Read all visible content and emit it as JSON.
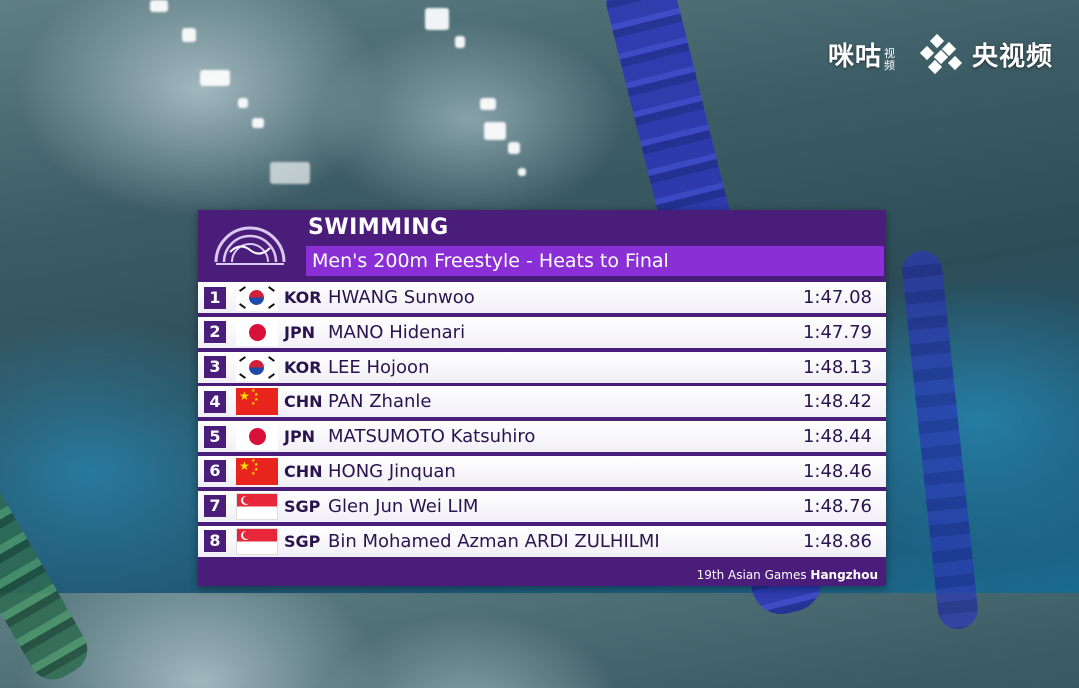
{
  "broadcaster": {
    "logo_left": "咪咕",
    "logo_left_small": "视频",
    "logo_right": "央视频"
  },
  "board": {
    "sport": "SWIMMING",
    "event": "Men's 200m Freestyle - Heats to Final",
    "footer_prefix": "19th Asian Games ",
    "footer_city": "Hangzhou",
    "colors": {
      "panel": "#4b1d7a",
      "event_bar": "#8a2fd6"
    },
    "results": [
      {
        "rank": "1",
        "flag": "kor-flag-icon",
        "code": "KOR",
        "name": "HWANG Sunwoo",
        "time": "1:47.08"
      },
      {
        "rank": "2",
        "flag": "jpn-flag-icon",
        "code": "JPN",
        "name": "MANO Hidenari",
        "time": "1:47.79"
      },
      {
        "rank": "3",
        "flag": "kor-flag-icon",
        "code": "KOR",
        "name": "LEE Hojoon",
        "time": "1:48.13"
      },
      {
        "rank": "4",
        "flag": "chn-flag-icon",
        "code": "CHN",
        "name": "PAN Zhanle",
        "time": "1:48.42"
      },
      {
        "rank": "5",
        "flag": "jpn-flag-icon",
        "code": "JPN",
        "name": "MATSUMOTO Katsuhiro",
        "time": "1:48.44"
      },
      {
        "rank": "6",
        "flag": "chn-flag-icon",
        "code": "CHN",
        "name": "HONG Jinquan",
        "time": "1:48.46"
      },
      {
        "rank": "7",
        "flag": "sgp-flag-icon",
        "code": "SGP",
        "name": "Glen Jun Wei LIM",
        "time": "1:48.76"
      },
      {
        "rank": "8",
        "flag": "sgp-flag-icon",
        "code": "SGP",
        "name": "Bin Mohamed Azman ARDI ZULHILMI",
        "time": "1:48.86"
      }
    ]
  }
}
